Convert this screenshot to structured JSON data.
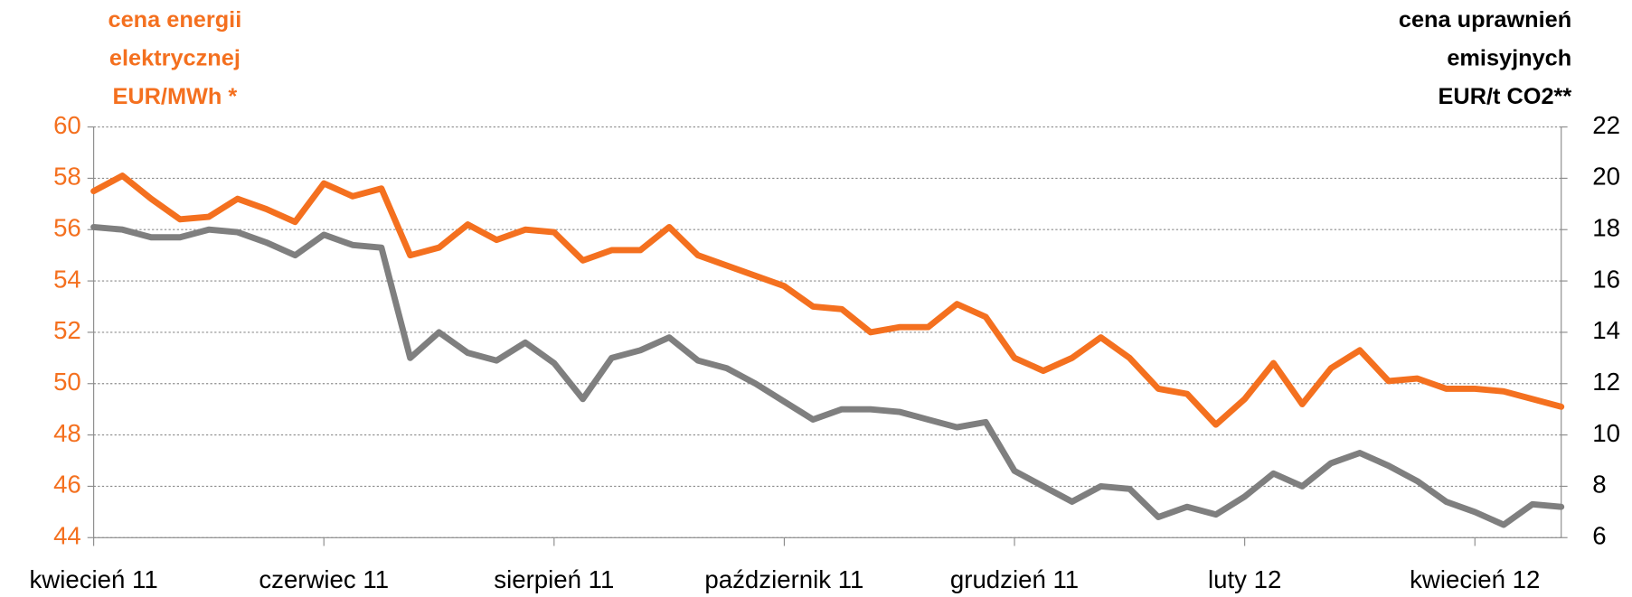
{
  "chart_data": {
    "type": "line",
    "y_label": [
      "cena energii",
      "elektrycznej",
      "EUR/MWh *"
    ],
    "y2_label": [
      "cena uprawnień",
      "emisyjnych",
      "EUR/t CO2**"
    ],
    "categories": [
      "kwiecień 11",
      null,
      null,
      null,
      null,
      null,
      null,
      null,
      "czerwiec 11",
      null,
      null,
      null,
      null,
      null,
      null,
      null,
      "sierpień 11",
      null,
      null,
      null,
      null,
      null,
      null,
      null,
      "październik 11",
      null,
      null,
      null,
      null,
      null,
      null,
      null,
      "grudzień 11",
      null,
      null,
      null,
      null,
      null,
      null,
      null,
      "luty 12",
      null,
      null,
      null,
      null,
      null,
      null,
      null,
      "kwiecień 12",
      null,
      null,
      null
    ],
    "series": [
      {
        "name": "cena energii elektrycznej",
        "color": "#f4701f",
        "axis": "y",
        "values": [
          57.5,
          58.1,
          57.2,
          56.4,
          56.5,
          57.2,
          56.8,
          56.3,
          57.8,
          57.3,
          57.6,
          55.0,
          55.3,
          56.2,
          55.6,
          56.0,
          55.9,
          54.8,
          55.2,
          55.2,
          56.1,
          55.0,
          54.6,
          54.2,
          53.8,
          53.0,
          52.9,
          52.0,
          52.2,
          52.2,
          53.1,
          52.6,
          51.0,
          50.5,
          51.0,
          51.8,
          51.0,
          49.8,
          49.6,
          48.4,
          49.4,
          50.8,
          49.2,
          50.6,
          51.3,
          50.1,
          50.2,
          49.8,
          49.8,
          49.7,
          49.4,
          49.1
        ]
      },
      {
        "name": "cena uprawnień emisyjnych",
        "color": "#7f7f7f",
        "axis": "y2",
        "values": [
          18.1,
          18.0,
          17.7,
          17.7,
          18.0,
          17.9,
          17.5,
          17.0,
          17.8,
          17.4,
          17.3,
          13.0,
          14.0,
          13.2,
          12.9,
          13.6,
          12.8,
          11.4,
          13.0,
          13.3,
          13.8,
          12.9,
          12.6,
          12.0,
          11.3,
          10.6,
          11.0,
          11.0,
          10.9,
          10.6,
          10.3,
          10.5,
          8.6,
          8.0,
          7.4,
          8.0,
          7.9,
          6.8,
          7.2,
          6.9,
          7.6,
          8.5,
          8.0,
          8.9,
          9.3,
          8.8,
          8.2,
          7.4,
          7.0,
          6.5,
          7.3,
          7.2
        ]
      }
    ],
    "ylim": [
      44,
      60
    ],
    "yticks": [
      44,
      46,
      48,
      50,
      52,
      54,
      56,
      58,
      60
    ],
    "y2lim": [
      6,
      22
    ],
    "y2ticks": [
      6,
      8,
      10,
      12,
      14,
      16,
      18,
      20,
      22
    ],
    "grid": true,
    "y_color": "#f4701f",
    "y2_color": "#000000"
  }
}
